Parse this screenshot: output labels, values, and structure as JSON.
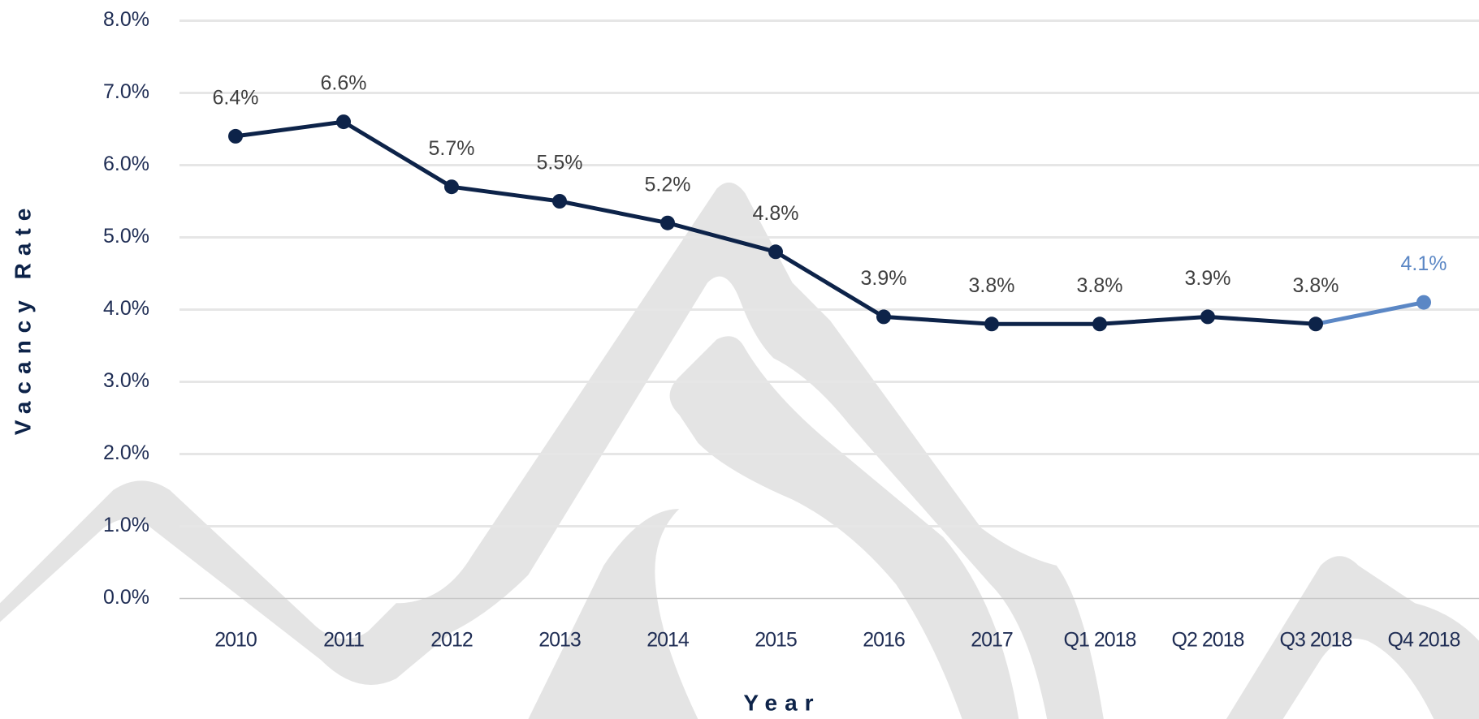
{
  "chart_data": {
    "type": "line",
    "x_label": "Year",
    "y_label": "Vacancy Rate",
    "categories": [
      "2010",
      "2011",
      "2012",
      "2013",
      "2014",
      "2015",
      "2016",
      "2017",
      "Q1 2018",
      "Q2 2018",
      "Q3 2018",
      "Q4 2018"
    ],
    "series": [
      {
        "name": "Vacancy Rate",
        "color": "#0d2349",
        "point_colors": [
          "#0d2349",
          "#0d2349",
          "#0d2349",
          "#0d2349",
          "#0d2349",
          "#0d2349",
          "#0d2349",
          "#0d2349",
          "#0d2349",
          "#0d2349",
          "#0d2349",
          "#5b87c5"
        ],
        "values": [
          6.4,
          6.6,
          5.7,
          5.5,
          5.2,
          4.8,
          3.9,
          3.8,
          3.8,
          3.9,
          3.8,
          4.1
        ],
        "value_labels": [
          "6.4%",
          "6.6%",
          "5.7%",
          "5.5%",
          "5.2%",
          "4.8%",
          "3.9%",
          "3.8%",
          "3.8%",
          "3.9%",
          "3.8%",
          "4.1%"
        ]
      }
    ],
    "ylim": [
      0,
      8
    ],
    "yticks": [
      {
        "value": 0,
        "label": "0.0%"
      },
      {
        "value": 1,
        "label": "1.0%"
      },
      {
        "value": 2,
        "label": "2.0%"
      },
      {
        "value": 3,
        "label": "3.0%"
      },
      {
        "value": 4,
        "label": "4.0%"
      },
      {
        "value": 5,
        "label": "5.0%"
      },
      {
        "value": 6,
        "label": "6.0%"
      },
      {
        "value": 7,
        "label": "7.0%"
      },
      {
        "value": 8,
        "label": "8.0%"
      }
    ],
    "grid": true
  }
}
